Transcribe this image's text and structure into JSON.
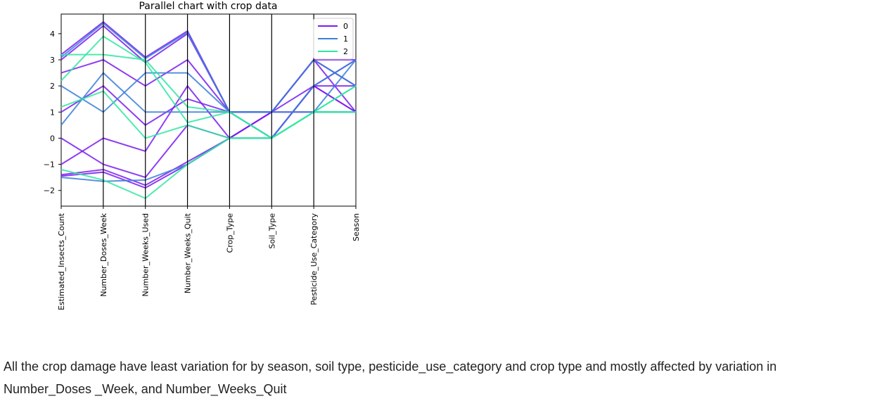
{
  "chart_data": {
    "type": "parallel",
    "title": "Parallel chart with crop data",
    "axes": [
      "Estimated_Insects_Count",
      "Number_Doses_Week",
      "Number_Weeks_Used",
      "Number_Weeks_Quit",
      "Crop_Type",
      "Soil_Type",
      "Pesticide_Use_Category",
      "Season"
    ],
    "y_ticks": [
      4,
      3,
      2,
      1,
      0,
      -1,
      -2
    ],
    "y_tick_labels": [
      "4",
      "3",
      "2",
      "1",
      "0",
      "−1",
      "−2"
    ],
    "ylim": [
      -2.6,
      4.75
    ],
    "legend": {
      "placement": "top-right",
      "entries": [
        "0",
        "1",
        "2"
      ]
    },
    "colors": {
      "0": "#7a1cf0",
      "1": "#3a7fd8",
      "2": "#2ee8a0"
    },
    "axis_ranges": {
      "Estimated_Insects_Count": [
        -1.5,
        3.2
      ],
      "Number_Doses_Week": [
        -1.65,
        4.45
      ],
      "Number_Weeks_Used": [
        -2.3,
        3.1
      ],
      "Number_Weeks_Quit": [
        -1.0,
        4.1
      ],
      "Crop_Type": [
        0,
        1
      ],
      "Soil_Type": [
        0,
        1
      ],
      "Pesticide_Use_Category": [
        1,
        3
      ],
      "Season": [
        1,
        3
      ]
    },
    "series": [
      {
        "name": "0",
        "values": [
          [
            3.2,
            4.45,
            3.1,
            4.1,
            1,
            1,
            3,
            3
          ],
          [
            3.0,
            4.3,
            2.9,
            4.0,
            1,
            0,
            2,
            1
          ],
          [
            -1.45,
            -1.3,
            -1.9,
            -1.0,
            0,
            1,
            3,
            2
          ],
          [
            -1.4,
            -1.2,
            -1.8,
            -0.9,
            0,
            0,
            2,
            3
          ],
          [
            1.0,
            2.0,
            0.5,
            1.5,
            1,
            1,
            2,
            1
          ],
          [
            0.0,
            -1.0,
            -1.5,
            0.5,
            0,
            1,
            3,
            1
          ],
          [
            2.5,
            3.0,
            2.0,
            3.0,
            1,
            0,
            2,
            2
          ],
          [
            -1.0,
            0.0,
            -0.5,
            2.0,
            0,
            1,
            1,
            1
          ]
        ]
      },
      {
        "name": "1",
        "values": [
          [
            3.1,
            4.4,
            3.05,
            4.05,
            1,
            1,
            3,
            2
          ],
          [
            -1.5,
            -1.65,
            -1.6,
            -1.0,
            0,
            0,
            1,
            3
          ],
          [
            2.0,
            1.0,
            2.5,
            2.5,
            1,
            0,
            2,
            3
          ],
          [
            0.5,
            2.5,
            1.0,
            1.0,
            1,
            1,
            1,
            1
          ]
        ]
      },
      {
        "name": "2",
        "values": [
          [
            3.2,
            3.2,
            3.0,
            1.2,
            1,
            0,
            1,
            1
          ],
          [
            2.2,
            3.9,
            2.9,
            0.6,
            1,
            0,
            1,
            2
          ],
          [
            -1.2,
            -1.6,
            -2.3,
            -1.0,
            0,
            0,
            1,
            1
          ],
          [
            1.2,
            1.8,
            0.0,
            0.5,
            0,
            0,
            1,
            2
          ]
        ]
      }
    ]
  },
  "caption": {
    "line1": "All the crop damage have least variation for by season, soil type, pesticide_use_category and crop type and mostly affected by variation in",
    "line2": "Number_Doses _Week, and Number_Weeks_Quit"
  }
}
